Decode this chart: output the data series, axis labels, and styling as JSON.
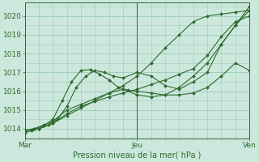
{
  "background_color": "#cce8dc",
  "grid_color": "#99ccbb",
  "line_color": "#2d6a2d",
  "spine_color": "#2d6a2d",
  "title": "Pression niveau de la mer( hPa )",
  "xtick_labels": [
    "Mar",
    "Jeu",
    "Ven"
  ],
  "xtick_positions": [
    0,
    48,
    96
  ],
  "xlim": [
    0,
    96
  ],
  "ylim": [
    1013.5,
    1020.7
  ],
  "yticks": [
    1014,
    1015,
    1016,
    1017,
    1018,
    1019,
    1020
  ],
  "series": [
    {
      "x": [
        0,
        3,
        6,
        12,
        18,
        24,
        30,
        36,
        42,
        48,
        54,
        60,
        66,
        72,
        78,
        84,
        90,
        96
      ],
      "y": [
        1013.8,
        1013.9,
        1014.0,
        1014.3,
        1014.7,
        1015.1,
        1015.5,
        1015.9,
        1016.3,
        1016.8,
        1017.5,
        1018.3,
        1019.0,
        1019.7,
        1020.0,
        1020.1,
        1020.2,
        1020.3
      ],
      "style": "-"
    },
    {
      "x": [
        0,
        3,
        6,
        10,
        14,
        18,
        22,
        26,
        30,
        34,
        38,
        42,
        48,
        54,
        60,
        66,
        72,
        78,
        84,
        90,
        96
      ],
      "y": [
        1013.9,
        1013.95,
        1014.0,
        1014.2,
        1014.5,
        1015.2,
        1016.2,
        1016.8,
        1017.1,
        1017.0,
        1016.8,
        1016.7,
        1017.0,
        1016.8,
        1016.3,
        1016.1,
        1016.5,
        1017.0,
        1018.5,
        1019.5,
        1020.5
      ],
      "style": "-"
    },
    {
      "x": [
        0,
        4,
        8,
        12,
        16,
        20,
        24,
        28,
        32,
        36,
        40,
        44,
        48,
        54,
        60,
        66,
        72,
        78,
        84,
        90,
        96
      ],
      "y": [
        1013.9,
        1014.0,
        1014.15,
        1014.5,
        1015.5,
        1016.5,
        1017.1,
        1017.15,
        1016.9,
        1016.6,
        1016.2,
        1016.05,
        1016.0,
        1015.9,
        1015.8,
        1015.8,
        1015.9,
        1016.2,
        1016.8,
        1017.5,
        1017.1
      ],
      "style": "-"
    },
    {
      "x": [
        0,
        4,
        8,
        12,
        18,
        24,
        30,
        36,
        42,
        48,
        54,
        60,
        66,
        72,
        78,
        84,
        90,
        96
      ],
      "y": [
        1013.9,
        1014.0,
        1014.2,
        1014.4,
        1015.0,
        1015.3,
        1015.6,
        1015.9,
        1016.1,
        1015.8,
        1015.7,
        1015.8,
        1016.2,
        1016.8,
        1017.5,
        1018.5,
        1019.5,
        1020.3
      ],
      "style": "-"
    },
    {
      "x": [
        0,
        6,
        12,
        18,
        24,
        30,
        36,
        42,
        48,
        54,
        60,
        66,
        72,
        78,
        84,
        90,
        96
      ],
      "y": [
        1013.9,
        1014.0,
        1014.3,
        1014.8,
        1015.2,
        1015.45,
        1015.7,
        1015.9,
        1016.1,
        1016.35,
        1016.6,
        1016.9,
        1017.2,
        1017.9,
        1018.9,
        1019.7,
        1020.0
      ],
      "style": "-"
    }
  ]
}
